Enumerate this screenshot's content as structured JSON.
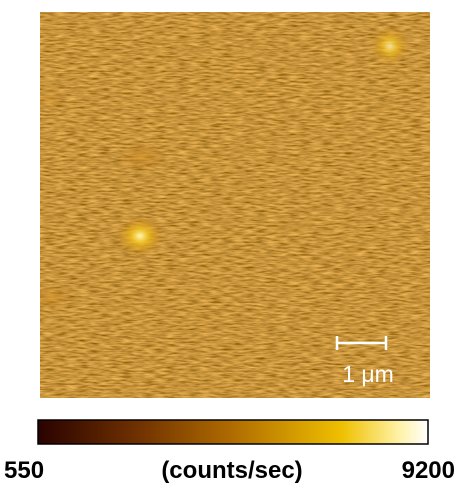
{
  "image": {
    "scale_bar_label": "1 μm"
  },
  "colorbar": {
    "min": 550,
    "label": "(counts/sec)",
    "max": 9200
  }
}
